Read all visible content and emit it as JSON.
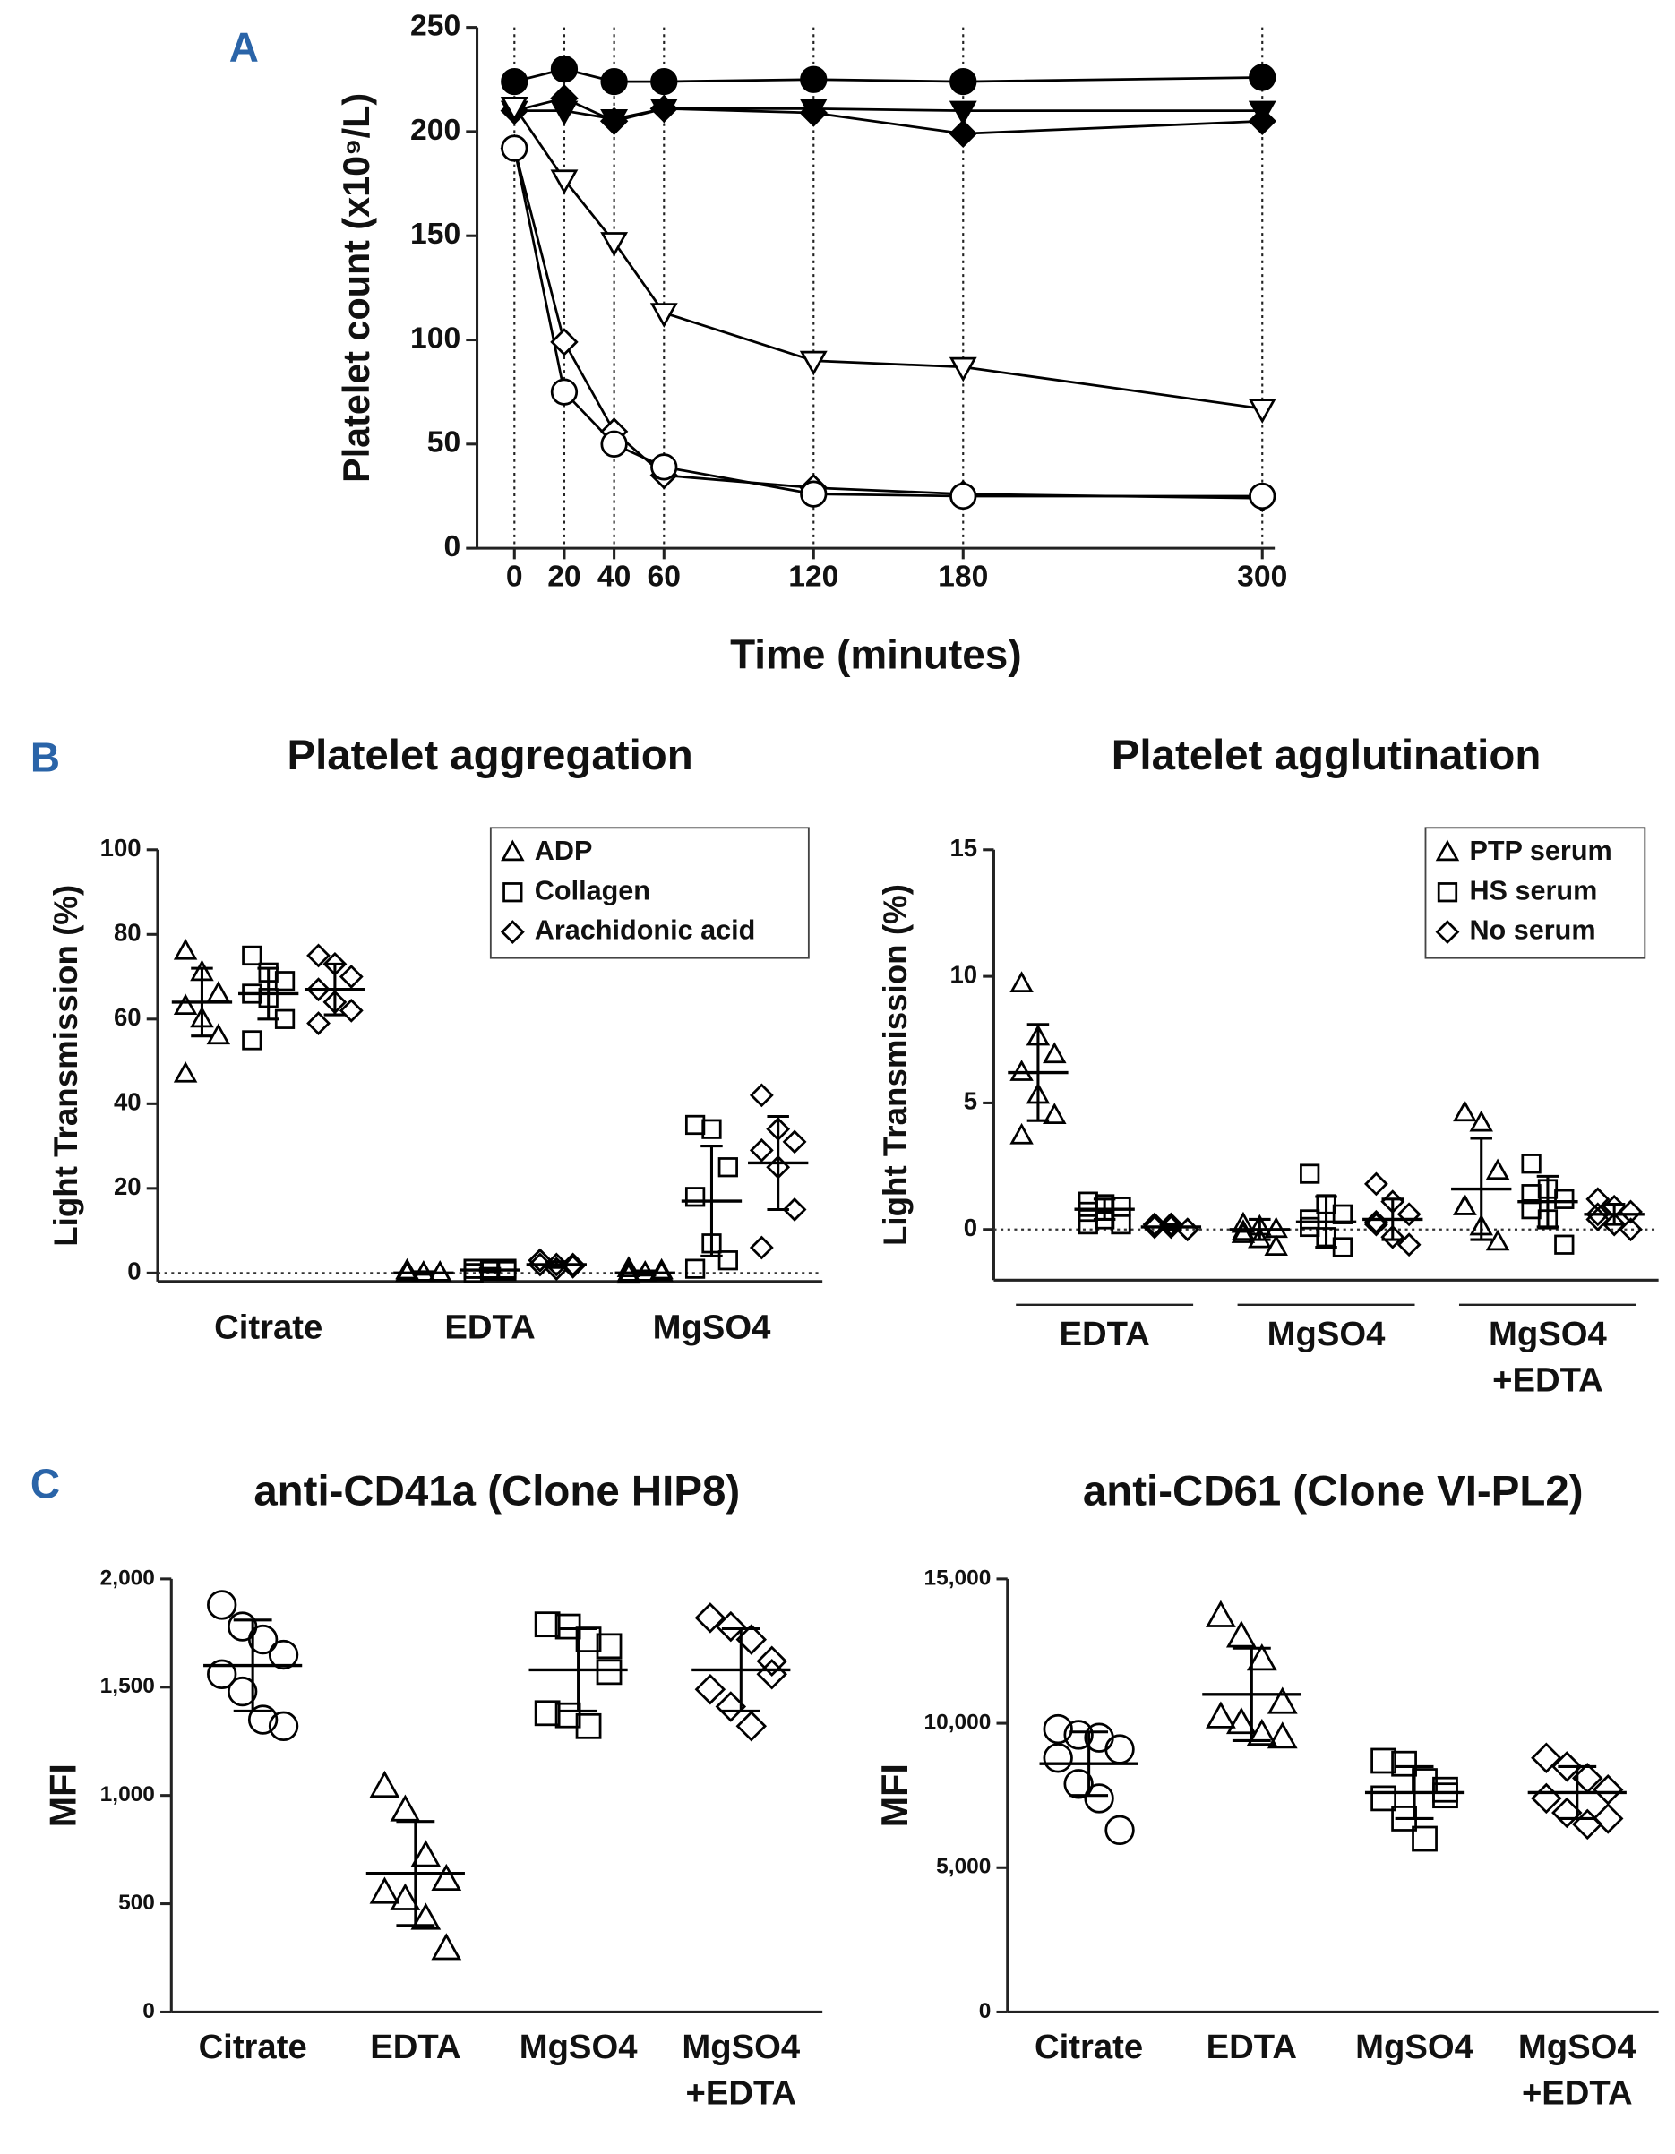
{
  "chart_data": [
    {
      "type": "line",
      "label": "A",
      "ylabel": "Platelet count (x10⁹/L)",
      "xlabel": "Time (minutes)",
      "x": [
        0,
        20,
        40,
        60,
        120,
        180,
        300
      ],
      "xlim": [
        -15,
        305
      ],
      "xticks": [
        0,
        20,
        40,
        60,
        120,
        180,
        300
      ],
      "ylim": [
        0,
        250
      ],
      "yticks": [
        0,
        50,
        100,
        150,
        200,
        250
      ],
      "grid": "x",
      "series": [
        {
          "marker": "circle",
          "filled": true,
          "color": "#000000",
          "values": [
            224,
            230,
            224,
            224,
            225,
            224,
            226
          ]
        },
        {
          "marker": "triangle-down",
          "filled": true,
          "color": "#000000",
          "values": [
            210,
            210,
            206,
            211,
            211,
            210,
            210
          ]
        },
        {
          "marker": "diamond",
          "filled": true,
          "color": "#000000",
          "values": [
            210,
            216,
            205,
            211,
            209,
            199,
            205
          ]
        },
        {
          "marker": "triangle-down",
          "filled": false,
          "color": "#000000",
          "values": [
            212,
            177,
            147,
            113,
            90,
            87,
            67
          ]
        },
        {
          "marker": "diamond",
          "filled": false,
          "color": "#000000",
          "values": [
            192,
            99,
            56,
            35,
            29,
            26,
            24
          ]
        },
        {
          "marker": "circle",
          "filled": false,
          "color": "#000000",
          "values": [
            192,
            75,
            50,
            39,
            26,
            25,
            25
          ]
        }
      ]
    },
    {
      "type": "dot",
      "label": "B",
      "title": "Platelet aggregation",
      "ylabel": "Light Transmission (%)",
      "categories": [
        "Citrate",
        "EDTA",
        "MgSO4"
      ],
      "ylim": [
        -2,
        100
      ],
      "yticks": [
        0,
        20,
        40,
        60,
        80,
        100
      ],
      "hline": 0,
      "legend": "top-right",
      "series": [
        {
          "name": "ADP",
          "marker": "triangle",
          "color": "#000000",
          "values": [
            [
              76,
              71,
              66,
              63,
              60,
              56,
              47
            ],
            [
              0,
              0,
              0,
              0,
              0,
              0,
              0.5
            ],
            [
              1,
              0,
              0,
              -0.5,
              0,
              0.5,
              0
            ]
          ],
          "mean": [
            64,
            0,
            0
          ],
          "sd": [
            8,
            0.3,
            0.5
          ]
        },
        {
          "name": "Collagen",
          "marker": "square",
          "color": "#000000",
          "values": [
            [
              75,
              71,
              69,
              66,
              65,
              60,
              55
            ],
            [
              1,
              0.5,
              1,
              0,
              1,
              0.5,
              1
            ],
            [
              35,
              34,
              25,
              18,
              7,
              3,
              1
            ]
          ],
          "mean": [
            66,
            0.7,
            17
          ],
          "sd": [
            6,
            0.4,
            13
          ]
        },
        {
          "name": "Arachidonic acid",
          "marker": "diamond",
          "color": "#000000",
          "values": [
            [
              75,
              73,
              70,
              67,
              64,
              62,
              59
            ],
            [
              3,
              2,
              1.5,
              2,
              1,
              2,
              3
            ],
            [
              42,
              34,
              31,
              29,
              25,
              15,
              6
            ]
          ],
          "mean": [
            67,
            2,
            26
          ],
          "sd": [
            6,
            0.7,
            11
          ]
        }
      ]
    },
    {
      "type": "dot",
      "title": "Platelet agglutination",
      "ylabel": "Light Transmission (%)",
      "categories": [
        "EDTA",
        "MgSO4",
        "MgSO4\n+EDTA"
      ],
      "ylim": [
        -2,
        15
      ],
      "yticks": [
        0,
        5,
        10,
        15
      ],
      "hline": 0,
      "legend": "top-right",
      "series": [
        {
          "name": "PTP serum",
          "marker": "triangle",
          "color": "#000000",
          "values": [
            [
              9.7,
              7.6,
              6.9,
              6.2,
              5.3,
              4.5,
              3.7
            ],
            [
              0.2,
              0.1,
              0,
              -0.2,
              -0.4,
              -0.7,
              -0.1
            ],
            [
              4.6,
              4.2,
              2.3,
              0.9,
              0.1,
              -0.5,
              0.9
            ]
          ],
          "mean": [
            6.2,
            0,
            1.6
          ],
          "sd": [
            1.9,
            0.4,
            2.0
          ]
        },
        {
          "name": "HS serum",
          "marker": "square",
          "color": "#000000",
          "values": [
            [
              1.1,
              1.0,
              0.9,
              0.7,
              0.4,
              0.2,
              0.2
            ],
            [
              2.2,
              1.0,
              0.6,
              0.1,
              -0.3,
              -0.7,
              0.4
            ],
            [
              2.6,
              1.6,
              1.2,
              0.8,
              0.4,
              -0.6,
              1.4
            ]
          ],
          "mean": [
            0.8,
            0.3,
            1.1
          ],
          "sd": [
            0.4,
            1.0,
            1.0
          ]
        },
        {
          "name": "No serum",
          "marker": "diamond",
          "color": "#000000",
          "values": [
            [
              0.2,
              0.1,
              0,
              0.1,
              0.2,
              0,
              0.1
            ],
            [
              1.8,
              1.1,
              0.6,
              0.2,
              -0.3,
              -0.6,
              0.3
            ],
            [
              1.2,
              0.9,
              0.7,
              0.4,
              0.2,
              0,
              0.6
            ]
          ],
          "mean": [
            0.1,
            0.4,
            0.6
          ],
          "sd": [
            0.1,
            0.8,
            0.4
          ]
        }
      ]
    },
    {
      "type": "dot",
      "label": "C",
      "title": "anti-CD41a (Clone HIP8)",
      "ylabel": "MFI",
      "categories": [
        "Citrate",
        "EDTA",
        "MgSO4",
        "MgSO4\n+EDTA"
      ],
      "ylim": [
        0,
        2000
      ],
      "yticks": [
        0,
        500,
        {
          "value": 1000,
          "label": "1,000"
        },
        {
          "value": 1500,
          "label": "1,500"
        },
        {
          "value": 2000,
          "label": "2,000"
        }
      ],
      "series": [
        {
          "markers": [
            "circle",
            "triangle",
            "square",
            "diamond"
          ],
          "color": "#000000",
          "values": [
            [
              1880,
              1780,
              1720,
              1650,
              1560,
              1480,
              1350,
              1320
            ],
            [
              1040,
              930,
              720,
              610,
              550,
              520,
              430,
              290
            ],
            [
              1790,
              1780,
              1720,
              1570,
              1380,
              1370,
              1320,
              1690
            ],
            [
              1820,
              1780,
              1720,
              1620,
              1490,
              1410,
              1320,
              1560
            ]
          ],
          "mean": [
            1600,
            640,
            1580,
            1580
          ],
          "sd": [
            210,
            240,
            190,
            190
          ]
        }
      ]
    },
    {
      "type": "dot",
      "title": "anti-CD61 (Clone VI-PL2)",
      "ylabel": "MFI",
      "categories": [
        "Citrate",
        "EDTA",
        "MgSO4",
        "MgSO4\n+EDTA"
      ],
      "ylim": [
        0,
        15000
      ],
      "yticks": [
        0,
        {
          "value": 5000,
          "label": "5,000"
        },
        {
          "value": 10000,
          "label": "10,000"
        },
        {
          "value": 15000,
          "label": "15,000"
        }
      ],
      "series": [
        {
          "markers": [
            "circle",
            "triangle",
            "square",
            "diamond"
          ],
          "color": "#000000",
          "values": [
            [
              9800,
              9600,
              9500,
              9100,
              8800,
              7900,
              7400,
              6300
            ],
            [
              13700,
              13000,
              12200,
              10700,
              10200,
              10000,
              9600,
              9500
            ],
            [
              8700,
              8600,
              8000,
              7700,
              7400,
              6700,
              6000,
              7500
            ],
            [
              8800,
              8500,
              8100,
              7700,
              7400,
              6900,
              6500,
              6700
            ]
          ],
          "mean": [
            8600,
            11000,
            7600,
            7600
          ],
          "sd": [
            1100,
            1600,
            900,
            900
          ]
        }
      ]
    }
  ]
}
